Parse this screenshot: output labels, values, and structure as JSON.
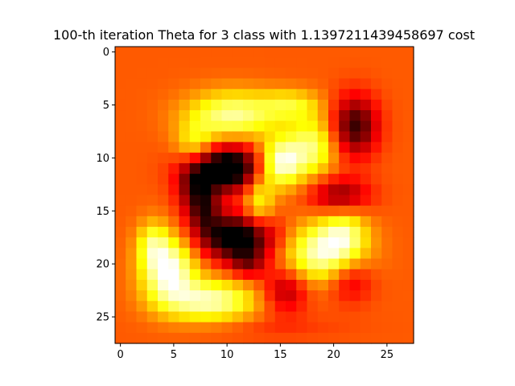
{
  "chart_data": {
    "type": "heatmap",
    "title": "100-th iteration Theta for 3 class with 1.1397211439458697 cost",
    "xlabel": "",
    "ylabel": "",
    "colormap": "hot",
    "rows": 28,
    "cols": 28,
    "xlim": [
      -0.5,
      27.5
    ],
    "ylim": [
      27.5,
      -0.5
    ],
    "xticks": [
      0,
      5,
      10,
      15,
      20,
      25
    ],
    "yticks": [
      0,
      5,
      10,
      15,
      20,
      25
    ],
    "xtick_labels": [
      "0",
      "5",
      "10",
      "15",
      "20",
      "25"
    ],
    "ytick_labels": [
      "0",
      "5",
      "10",
      "15",
      "20",
      "25"
    ],
    "grid": false,
    "value_range": [
      -1,
      1
    ],
    "background_value": 0.0,
    "blobs": [
      {
        "row": 6.0,
        "col": 10.5,
        "sr": 1.6,
        "sc": 3.0,
        "amp": 0.8
      },
      {
        "row": 9.0,
        "col": 7.0,
        "sr": 1.5,
        "sc": 1.3,
        "amp": 0.55
      },
      {
        "row": 10.5,
        "col": 15.0,
        "sr": 1.6,
        "sc": 1.4,
        "amp": 1.0
      },
      {
        "row": 9.0,
        "col": 18.0,
        "sr": 2.0,
        "sc": 1.6,
        "amp": 0.7
      },
      {
        "row": 5.0,
        "col": 16.0,
        "sr": 1.0,
        "sc": 2.0,
        "amp": 0.45
      },
      {
        "row": 14.0,
        "col": 13.0,
        "sr": 2.0,
        "sc": 1.0,
        "amp": 0.55
      },
      {
        "row": 19.0,
        "col": 19.0,
        "sr": 2.0,
        "sc": 2.6,
        "amp": 0.9
      },
      {
        "row": 17.0,
        "col": 21.0,
        "sr": 1.5,
        "sc": 1.5,
        "amp": 0.5
      },
      {
        "row": 20.5,
        "col": 4.5,
        "sr": 2.2,
        "sc": 1.8,
        "amp": 1.0
      },
      {
        "row": 23.5,
        "col": 8.5,
        "sr": 1.4,
        "sc": 3.0,
        "amp": 0.85
      },
      {
        "row": 18.0,
        "col": 3.0,
        "sr": 1.5,
        "sc": 1.0,
        "amp": 0.45
      },
      {
        "row": 11.0,
        "col": 10.0,
        "sr": 1.5,
        "sc": 2.5,
        "amp": -1.3
      },
      {
        "row": 13.0,
        "col": 7.0,
        "sr": 2.0,
        "sc": 1.2,
        "amp": -0.6
      },
      {
        "row": 17.5,
        "col": 11.0,
        "sr": 1.5,
        "sc": 2.5,
        "amp": -1.2
      },
      {
        "row": 15.0,
        "col": 8.0,
        "sr": 1.5,
        "sc": 1.0,
        "amp": -0.5
      },
      {
        "row": 7.0,
        "col": 22.0,
        "sr": 2.0,
        "sc": 1.5,
        "amp": -0.85
      },
      {
        "row": 13.5,
        "col": 20.5,
        "sr": 1.2,
        "sc": 2.0,
        "amp": -0.6
      },
      {
        "row": 22.5,
        "col": 15.5,
        "sr": 1.5,
        "sc": 1.5,
        "amp": -0.55
      },
      {
        "row": 21.5,
        "col": 21.5,
        "sr": 1.5,
        "sc": 1.5,
        "amp": -0.45
      },
      {
        "row": 20.0,
        "col": 12.0,
        "sr": 1.0,
        "sc": 1.2,
        "amp": -0.45
      },
      {
        "row": 26.0,
        "col": 14.0,
        "sr": 0.8,
        "sc": 5.0,
        "amp": -0.12
      }
    ]
  }
}
